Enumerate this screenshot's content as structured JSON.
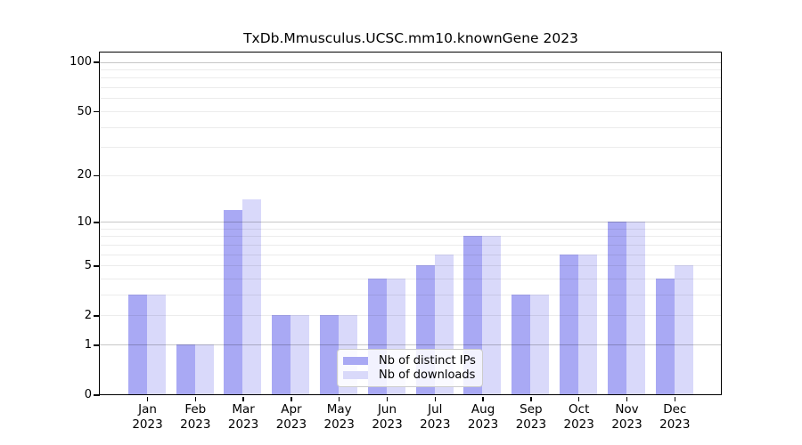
{
  "chart_data": {
    "type": "bar",
    "title": "TxDb.Mmusculus.UCSC.mm10.knownGene 2023",
    "year": "2023",
    "months": [
      "Jan",
      "Feb",
      "Mar",
      "Apr",
      "May",
      "Jun",
      "Jul",
      "Aug",
      "Sep",
      "Oct",
      "Nov",
      "Dec"
    ],
    "series": [
      {
        "name": "Nb of distinct IPs",
        "color": "#a9a9f4",
        "values": [
          3,
          1,
          12,
          2,
          2,
          4,
          5,
          8,
          3,
          6,
          10,
          4
        ]
      },
      {
        "name": "Nb of downloads",
        "color": "#d9d9fa",
        "values": [
          3,
          1,
          14,
          2,
          2,
          4,
          6,
          8,
          3,
          6,
          10,
          5
        ]
      }
    ],
    "y_axis": {
      "scale": "log10(1+x)",
      "ticks": [
        100,
        50,
        20,
        10,
        5,
        2,
        1,
        0
      ],
      "minor_gridlines": [
        2,
        3,
        4,
        5,
        6,
        7,
        8,
        9,
        20,
        30,
        40,
        50,
        60,
        70,
        80,
        90
      ],
      "major_gridlines": [
        1,
        10,
        100
      ],
      "ylim": [
        0,
        114
      ]
    },
    "xlabel": "",
    "ylabel": "",
    "grid": true,
    "legend_position": "lower center"
  }
}
